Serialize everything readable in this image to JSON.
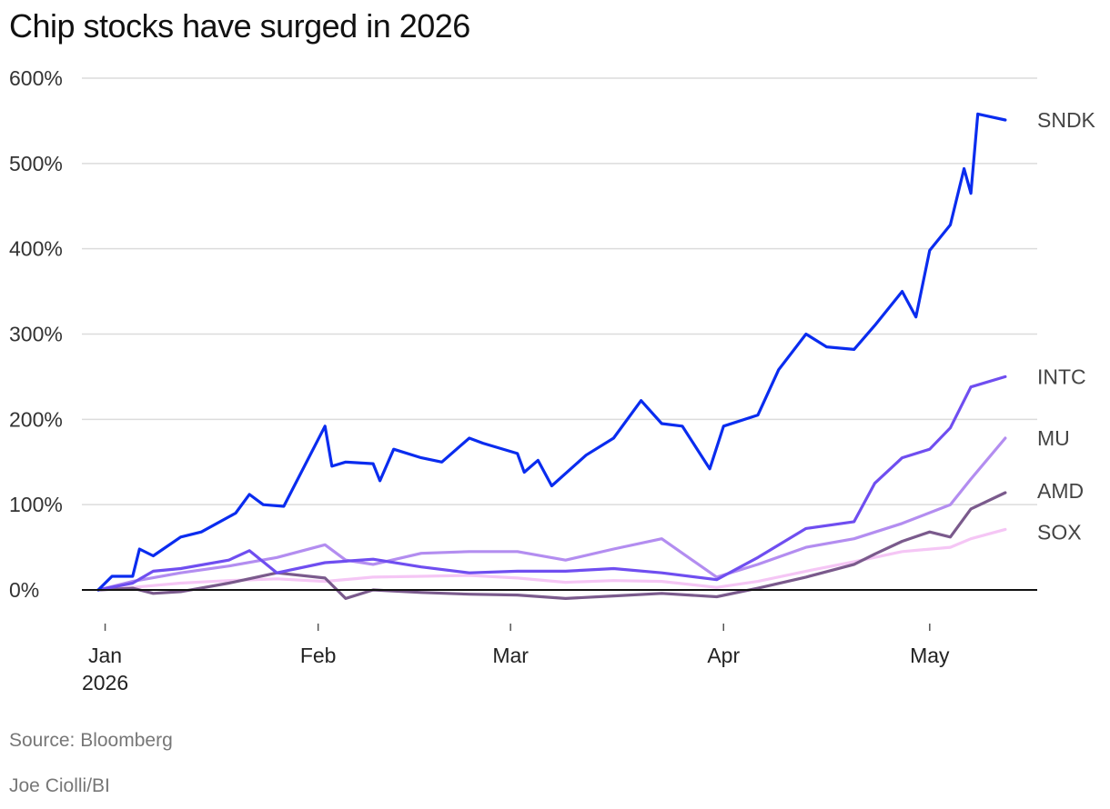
{
  "title": "Chip stocks have surged in 2026",
  "source": "Source: Bloomberg",
  "credit": "Joe Ciolli/BI",
  "chart_data": {
    "type": "line",
    "title": "Chip stocks have surged in 2026",
    "xlabel": "",
    "ylabel": "",
    "ylim": [
      -50,
      620
    ],
    "yticks": [
      0,
      100,
      200,
      300,
      400,
      500,
      600
    ],
    "ytick_labels": [
      "0%",
      "100%",
      "200%",
      "300%",
      "400%",
      "500%",
      "600%"
    ],
    "xlim": [
      "2025-12-31",
      "2026-05-14"
    ],
    "xticks": [
      {
        "date": "2026-01-01",
        "label": "Jan",
        "sublabel": "2026"
      },
      {
        "date": "2026-02-01",
        "label": "Feb",
        "sublabel": ""
      },
      {
        "date": "2026-03-01",
        "label": "Mar",
        "sublabel": ""
      },
      {
        "date": "2026-04-01",
        "label": "Apr",
        "sublabel": ""
      },
      {
        "date": "2026-05-01",
        "label": "May",
        "sublabel": ""
      }
    ],
    "grid": true,
    "legend": "direct labels at right end of lines",
    "series": [
      {
        "name": "SOX",
        "color": "#f5c6f5",
        "points": [
          [
            "2025-12-31",
            0
          ],
          [
            "2026-01-05",
            3
          ],
          [
            "2026-01-12",
            8
          ],
          [
            "2026-01-19",
            11
          ],
          [
            "2026-01-26",
            13
          ],
          [
            "2026-02-02",
            10
          ],
          [
            "2026-02-09",
            15
          ],
          [
            "2026-02-16",
            16
          ],
          [
            "2026-02-23",
            17
          ],
          [
            "2026-03-02",
            14
          ],
          [
            "2026-03-09",
            9
          ],
          [
            "2026-03-16",
            11
          ],
          [
            "2026-03-23",
            10
          ],
          [
            "2026-03-31",
            3
          ],
          [
            "2026-04-06",
            10
          ],
          [
            "2026-04-13",
            22
          ],
          [
            "2026-04-20",
            33
          ],
          [
            "2026-04-27",
            45
          ],
          [
            "2026-05-04",
            50
          ],
          [
            "2026-05-07",
            60
          ],
          [
            "2026-05-12",
            71
          ]
        ]
      },
      {
        "name": "AMD",
        "color": "#7a5a8c",
        "points": [
          [
            "2025-12-31",
            0
          ],
          [
            "2026-01-05",
            2
          ],
          [
            "2026-01-08",
            -4
          ],
          [
            "2026-01-12",
            -2
          ],
          [
            "2026-01-19",
            8
          ],
          [
            "2026-01-26",
            20
          ],
          [
            "2026-02-02",
            14
          ],
          [
            "2026-02-05",
            -10
          ],
          [
            "2026-02-09",
            0
          ],
          [
            "2026-02-16",
            -3
          ],
          [
            "2026-02-23",
            -5
          ],
          [
            "2026-03-02",
            -6
          ],
          [
            "2026-03-09",
            -10
          ],
          [
            "2026-03-16",
            -7
          ],
          [
            "2026-03-23",
            -4
          ],
          [
            "2026-03-31",
            -8
          ],
          [
            "2026-04-06",
            2
          ],
          [
            "2026-04-13",
            15
          ],
          [
            "2026-04-20",
            30
          ],
          [
            "2026-04-23",
            42
          ],
          [
            "2026-04-27",
            57
          ],
          [
            "2026-05-01",
            68
          ],
          [
            "2026-05-04",
            62
          ],
          [
            "2026-05-07",
            95
          ],
          [
            "2026-05-12",
            114
          ]
        ]
      },
      {
        "name": "MU",
        "color": "#b38df0",
        "points": [
          [
            "2025-12-31",
            0
          ],
          [
            "2026-01-05",
            10
          ],
          [
            "2026-01-12",
            20
          ],
          [
            "2026-01-19",
            28
          ],
          [
            "2026-01-26",
            38
          ],
          [
            "2026-02-02",
            53
          ],
          [
            "2026-02-05",
            35
          ],
          [
            "2026-02-09",
            30
          ],
          [
            "2026-02-16",
            43
          ],
          [
            "2026-02-23",
            45
          ],
          [
            "2026-03-02",
            45
          ],
          [
            "2026-03-09",
            35
          ],
          [
            "2026-03-16",
            48
          ],
          [
            "2026-03-23",
            60
          ],
          [
            "2026-03-31",
            15
          ],
          [
            "2026-04-06",
            30
          ],
          [
            "2026-04-13",
            50
          ],
          [
            "2026-04-20",
            60
          ],
          [
            "2026-04-27",
            78
          ],
          [
            "2026-05-04",
            100
          ],
          [
            "2026-05-07",
            130
          ],
          [
            "2026-05-12",
            178
          ]
        ]
      },
      {
        "name": "INTC",
        "color": "#6f4ef0",
        "points": [
          [
            "2025-12-31",
            0
          ],
          [
            "2026-01-05",
            8
          ],
          [
            "2026-01-08",
            22
          ],
          [
            "2026-01-12",
            25
          ],
          [
            "2026-01-19",
            35
          ],
          [
            "2026-01-22",
            46
          ],
          [
            "2026-01-26",
            20
          ],
          [
            "2026-02-02",
            32
          ],
          [
            "2026-02-09",
            36
          ],
          [
            "2026-02-16",
            27
          ],
          [
            "2026-02-23",
            20
          ],
          [
            "2026-03-02",
            22
          ],
          [
            "2026-03-09",
            22
          ],
          [
            "2026-03-16",
            25
          ],
          [
            "2026-03-23",
            20
          ],
          [
            "2026-03-31",
            12
          ],
          [
            "2026-04-06",
            38
          ],
          [
            "2026-04-13",
            72
          ],
          [
            "2026-04-20",
            80
          ],
          [
            "2026-04-23",
            125
          ],
          [
            "2026-04-27",
            155
          ],
          [
            "2026-05-01",
            165
          ],
          [
            "2026-05-04",
            190
          ],
          [
            "2026-05-07",
            238
          ],
          [
            "2026-05-12",
            250
          ]
        ]
      },
      {
        "name": "SNDK",
        "color": "#0a2cef",
        "points": [
          [
            "2025-12-31",
            0
          ],
          [
            "2026-01-02",
            16
          ],
          [
            "2026-01-05",
            16
          ],
          [
            "2026-01-06",
            48
          ],
          [
            "2026-01-08",
            40
          ],
          [
            "2026-01-12",
            62
          ],
          [
            "2026-01-15",
            68
          ],
          [
            "2026-01-20",
            90
          ],
          [
            "2026-01-22",
            112
          ],
          [
            "2026-01-24",
            100
          ],
          [
            "2026-01-27",
            98
          ],
          [
            "2026-02-02",
            192
          ],
          [
            "2026-02-03",
            145
          ],
          [
            "2026-02-05",
            150
          ],
          [
            "2026-02-09",
            148
          ],
          [
            "2026-02-10",
            128
          ],
          [
            "2026-02-12",
            165
          ],
          [
            "2026-02-16",
            155
          ],
          [
            "2026-02-19",
            150
          ],
          [
            "2026-02-23",
            178
          ],
          [
            "2026-02-25",
            172
          ],
          [
            "2026-03-02",
            160
          ],
          [
            "2026-03-03",
            138
          ],
          [
            "2026-03-05",
            152
          ],
          [
            "2026-03-07",
            122
          ],
          [
            "2026-03-12",
            158
          ],
          [
            "2026-03-16",
            178
          ],
          [
            "2026-03-20",
            222
          ],
          [
            "2026-03-23",
            195
          ],
          [
            "2026-03-26",
            192
          ],
          [
            "2026-03-30",
            142
          ],
          [
            "2026-04-01",
            192
          ],
          [
            "2026-04-06",
            205
          ],
          [
            "2026-04-09",
            258
          ],
          [
            "2026-04-13",
            300
          ],
          [
            "2026-04-16",
            285
          ],
          [
            "2026-04-20",
            282
          ],
          [
            "2026-04-23",
            310
          ],
          [
            "2026-04-27",
            350
          ],
          [
            "2026-04-29",
            320
          ],
          [
            "2026-05-01",
            398
          ],
          [
            "2026-05-04",
            428
          ],
          [
            "2026-05-06",
            494
          ],
          [
            "2026-05-07",
            465
          ],
          [
            "2026-05-08",
            558
          ],
          [
            "2026-05-12",
            551
          ]
        ]
      }
    ]
  }
}
